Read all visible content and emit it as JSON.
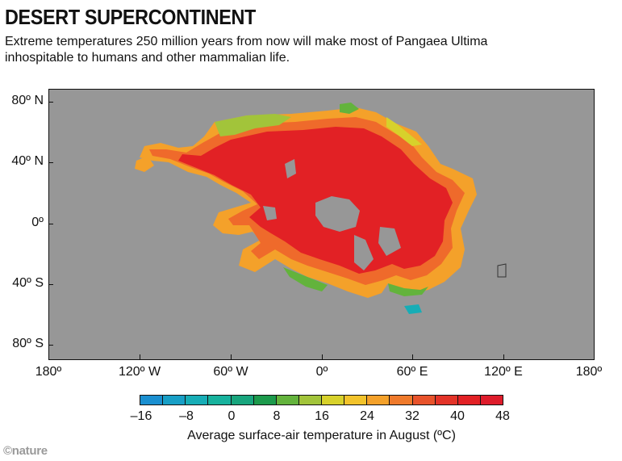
{
  "header": {
    "title": "DESERT SUPERCONTINENT",
    "subtitle": "Extreme temperatures 250 million years from now will make most of Pangaea Ultima inhospitable to humans and other mammalian life."
  },
  "map": {
    "background_color": "#979797",
    "lat_labels": [
      "80º N",
      "40º N",
      "0º",
      "40º S",
      "80º S"
    ],
    "lon_labels": [
      "180º",
      "120º W",
      "60º W",
      "0º",
      "60º E",
      "120º E",
      "180º"
    ]
  },
  "legend": {
    "title": "Average surface-air temperature in August (ºC)",
    "tick_labels": [
      "–16",
      "–8",
      "0",
      "8",
      "16",
      "24",
      "32",
      "40",
      "48"
    ],
    "colors": [
      "#1a8fd0",
      "#189fc6",
      "#17adb6",
      "#17b29d",
      "#18a57d",
      "#1c9a4c",
      "#63b33c",
      "#a2c43a",
      "#d7d12b",
      "#f2c32b",
      "#f4a12a",
      "#ef7a2b",
      "#e8532b",
      "#e33328",
      "#e22125",
      "#de1c2b"
    ]
  },
  "brand": {
    "label": "©nature"
  }
}
